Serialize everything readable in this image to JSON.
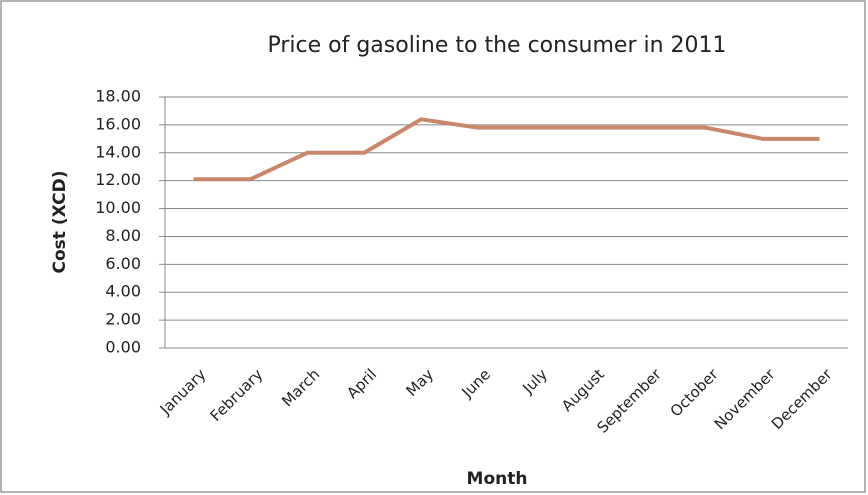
{
  "chart_data": {
    "type": "line",
    "title": "Price of gasoline to the consumer in 2011",
    "x_label": "Month",
    "y_label": "Cost (XCD)",
    "categories": [
      "January",
      "February",
      "March",
      "April",
      "May",
      "June",
      "July",
      "August",
      "September",
      "October",
      "November",
      "December"
    ],
    "series": [
      {
        "name": "Cost",
        "color": "#c8866a",
        "values": [
          12.1,
          12.1,
          14.0,
          14.0,
          16.4,
          15.8,
          15.8,
          15.8,
          15.8,
          15.8,
          15.0,
          15.0
        ]
      }
    ],
    "ylim": [
      0,
      18
    ],
    "yticks": [
      {
        "value": 0,
        "label": "0.00"
      },
      {
        "value": 2,
        "label": "2.00"
      },
      {
        "value": 4,
        "label": "4.00"
      },
      {
        "value": 6,
        "label": "6.00"
      },
      {
        "value": 8,
        "label": "8.00"
      },
      {
        "value": 10,
        "label": "10.00"
      },
      {
        "value": 12,
        "label": "12.00"
      },
      {
        "value": 14,
        "label": "14.00"
      },
      {
        "value": 16,
        "label": "16.00"
      },
      {
        "value": 18,
        "label": "18.00"
      }
    ],
    "grid": true
  }
}
